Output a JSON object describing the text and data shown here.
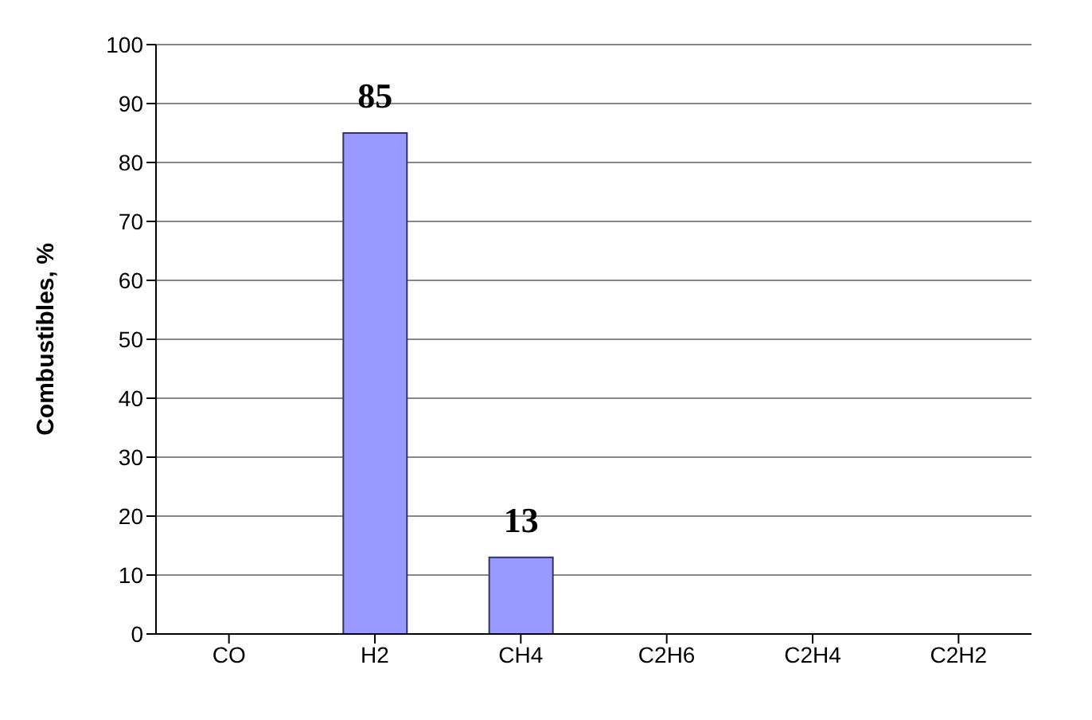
{
  "chart_data": {
    "type": "bar",
    "ylabel": "Combustibles, %",
    "categories": [
      "CO",
      "H2",
      "CH4",
      "C2H6",
      "C2H4",
      "C2H2"
    ],
    "values": [
      0,
      85,
      13,
      0,
      0,
      0
    ],
    "value_labels": [
      null,
      "85",
      "13",
      null,
      null,
      null
    ],
    "color": "#9999ff",
    "ylim": [
      0,
      100
    ],
    "yticks": [
      0,
      10,
      20,
      30,
      40,
      50,
      60,
      70,
      80,
      90,
      100
    ],
    "grid": "y"
  }
}
